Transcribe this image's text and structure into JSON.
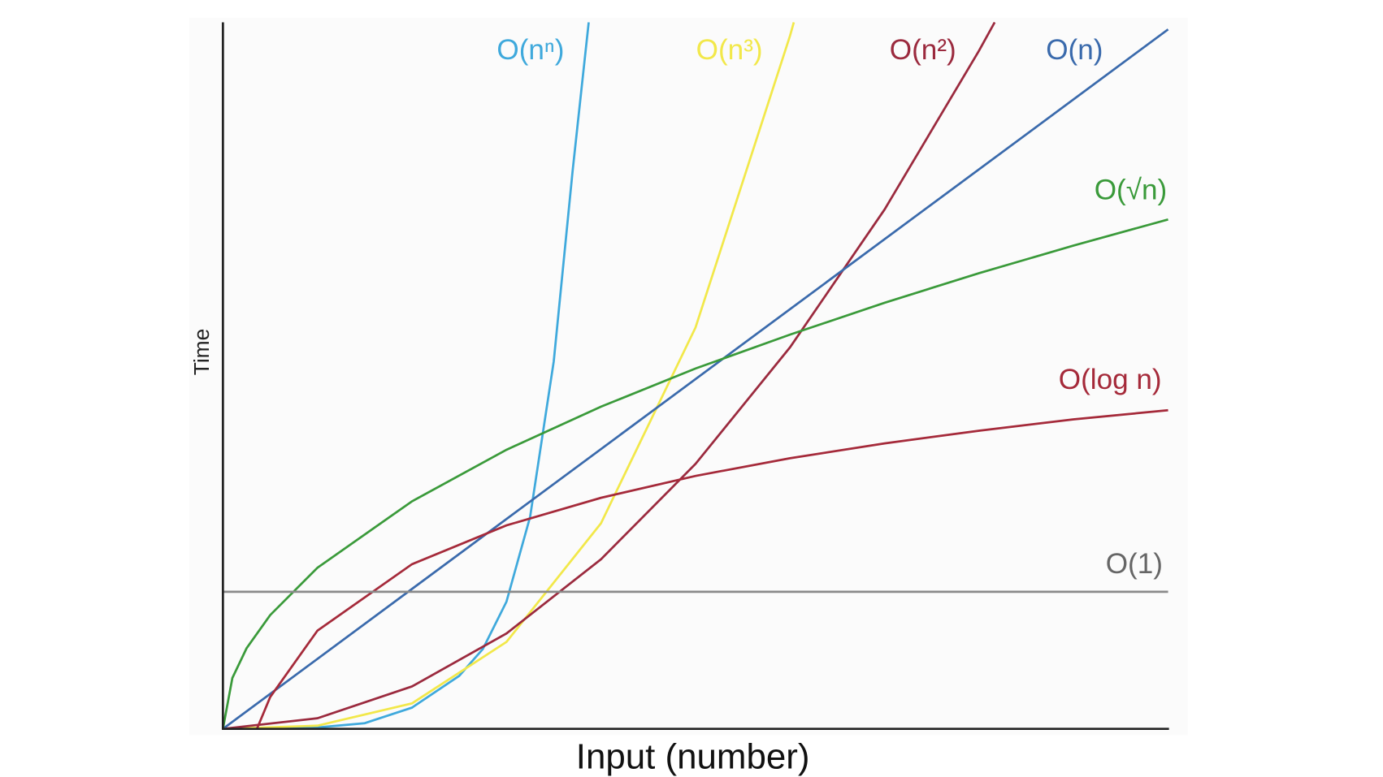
{
  "chart_data": {
    "type": "line",
    "y_label": "Time",
    "x_label": "Input (number)",
    "xlim": [
      0,
      10
    ],
    "ylim": [
      0,
      10
    ],
    "series": [
      {
        "name": "O(nⁿ)",
        "color": "#3fa9dc",
        "x": [
          0,
          1,
          1.5,
          2,
          2.5,
          2.75,
          3,
          3.25,
          3.5,
          3.7,
          3.87
        ],
        "values": [
          0,
          0.02,
          0.08,
          0.3,
          0.75,
          1.13,
          1.8,
          3.0,
          5.2,
          7.9,
          10
        ]
      },
      {
        "name": "O(n³)",
        "color": "#f2e84a",
        "x": [
          0,
          1,
          2,
          3,
          4,
          5,
          6,
          6.04
        ],
        "values": [
          0,
          0.045,
          0.36,
          1.23,
          2.91,
          5.68,
          9.81,
          10
        ]
      },
      {
        "name": "O(n²)",
        "color": "#9b2a3e",
        "x": [
          0,
          1,
          2,
          3,
          4,
          5,
          6,
          7,
          8,
          8.165
        ],
        "values": [
          0,
          0.15,
          0.6,
          1.35,
          2.4,
          3.75,
          5.4,
          7.35,
          9.6,
          10
        ]
      },
      {
        "name": "O(n)",
        "color": "#3a6aac",
        "x": [
          0,
          10
        ],
        "values": [
          0,
          9.9
        ]
      },
      {
        "name": "O(√n)",
        "color": "#3a9a3a",
        "x": [
          0,
          0.1,
          0.25,
          0.5,
          1,
          2,
          3,
          4,
          5,
          6,
          7,
          8,
          9,
          10
        ],
        "values": [
          0,
          0.72,
          1.14,
          1.61,
          2.28,
          3.22,
          3.95,
          4.56,
          5.1,
          5.58,
          6.03,
          6.45,
          6.84,
          7.21
        ]
      },
      {
        "name": "O(log n)",
        "color": "#a52a3a",
        "x": [
          0.36,
          0.5,
          1,
          2,
          3,
          4,
          5,
          6,
          7,
          8,
          9,
          10
        ],
        "values": [
          0,
          0.45,
          1.39,
          2.33,
          2.88,
          3.27,
          3.58,
          3.83,
          4.04,
          4.22,
          4.38,
          4.51
        ]
      },
      {
        "name": "O(1)",
        "color": "#8a8a8a",
        "x": [
          0,
          10
        ],
        "values": [
          1.94,
          1.94
        ]
      }
    ]
  }
}
